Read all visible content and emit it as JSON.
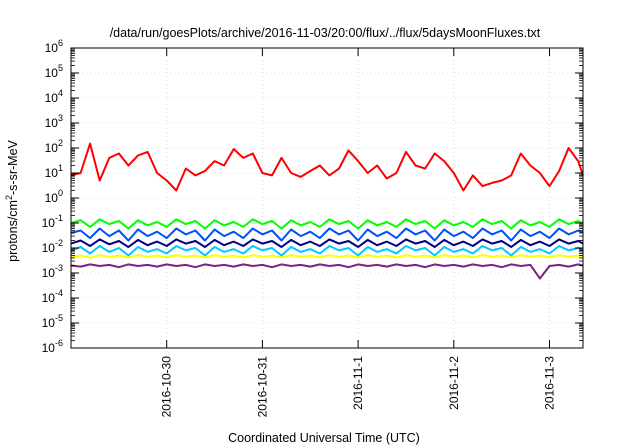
{
  "chart_data": {
    "type": "line",
    "title": "/data/run/goesPlots/archive/2016-11-03/20:00/flux/../flux/5daysMoonFluxes.txt",
    "xlabel": "Coordinated Universal Time (UTC)",
    "ylabel": {
      "base": "protons/cm",
      "sup": "2",
      "rest": "-s-sr-MeV"
    },
    "y_scale": "log",
    "ylim": [
      1e-06,
      1000000.0
    ],
    "xlim": [
      0,
      5.35
    ],
    "x_ticks": [
      {
        "x": 1,
        "label": "2016-10-30"
      },
      {
        "x": 2,
        "label": "2016-10-31"
      },
      {
        "x": 3,
        "label": "2016-11-1"
      },
      {
        "x": 4,
        "label": "2016-11-2"
      },
      {
        "x": 5,
        "label": "2016-11-3"
      }
    ],
    "y_ticks": [
      {
        "v": 1e-06,
        "base": "10",
        "exp": "-6"
      },
      {
        "v": 1e-05,
        "base": "10",
        "exp": "-5"
      },
      {
        "v": 0.0001,
        "base": "10",
        "exp": "-4"
      },
      {
        "v": 0.001,
        "base": "10",
        "exp": "-3"
      },
      {
        "v": 0.01,
        "base": "10",
        "exp": "-2"
      },
      {
        "v": 0.1,
        "base": "10",
        "exp": "-1"
      },
      {
        "v": 1,
        "base": "10",
        "exp": "0"
      },
      {
        "v": 10,
        "base": "10",
        "exp": "1"
      },
      {
        "v": 100,
        "base": "10",
        "exp": "2"
      },
      {
        "v": 1000,
        "base": "10",
        "exp": "3"
      },
      {
        "v": 10000,
        "base": "10",
        "exp": "4"
      },
      {
        "v": 100000,
        "base": "10",
        "exp": "5"
      },
      {
        "v": 1000000,
        "base": "10",
        "exp": "6"
      }
    ],
    "grid": true,
    "legend": "none",
    "series": [
      {
        "color": "#ff0000",
        "x": [
          0.0,
          0.1,
          0.2,
          0.3,
          0.4,
          0.5,
          0.6,
          0.7,
          0.8,
          0.9,
          1.0,
          1.1,
          1.2,
          1.3,
          1.4,
          1.5,
          1.6,
          1.7,
          1.8,
          1.9,
          2.0,
          2.1,
          2.2,
          2.3,
          2.4,
          2.5,
          2.6,
          2.7,
          2.8,
          2.9,
          3.0,
          3.1,
          3.2,
          3.3,
          3.4,
          3.5,
          3.6,
          3.7,
          3.8,
          3.9,
          4.0,
          4.1,
          4.2,
          4.3,
          4.4,
          4.5,
          4.6,
          4.7,
          4.8,
          4.9,
          5.0,
          5.1,
          5.2,
          5.3,
          5.35
        ],
        "y": [
          8,
          10,
          150,
          5,
          40,
          60,
          20,
          50,
          70,
          10,
          5,
          2,
          15,
          8,
          12,
          30,
          20,
          90,
          40,
          60,
          10,
          8,
          40,
          10,
          7,
          12,
          20,
          8,
          15,
          80,
          30,
          10,
          20,
          6,
          10,
          70,
          20,
          15,
          60,
          30,
          10,
          2,
          8,
          3,
          4,
          5,
          8,
          60,
          20,
          10,
          3,
          12,
          100,
          30,
          8
        ]
      },
      {
        "color": "#00ff00",
        "x": [
          0.0,
          0.1,
          0.2,
          0.3,
          0.4,
          0.5,
          0.6,
          0.7,
          0.8,
          0.9,
          1.0,
          1.1,
          1.2,
          1.3,
          1.4,
          1.5,
          1.6,
          1.7,
          1.8,
          1.9,
          2.0,
          2.1,
          2.2,
          2.3,
          2.4,
          2.5,
          2.6,
          2.7,
          2.8,
          2.9,
          3.0,
          3.1,
          3.2,
          3.3,
          3.4,
          3.5,
          3.6,
          3.7,
          3.8,
          3.9,
          4.0,
          4.1,
          4.2,
          4.3,
          4.4,
          4.5,
          4.6,
          4.7,
          4.8,
          4.9,
          5.0,
          5.1,
          5.2,
          5.3,
          5.35
        ],
        "y": [
          0.1,
          0.13,
          0.07,
          0.14,
          0.09,
          0.12,
          0.06,
          0.13,
          0.08,
          0.11,
          0.07,
          0.14,
          0.09,
          0.12,
          0.06,
          0.13,
          0.08,
          0.11,
          0.07,
          0.14,
          0.09,
          0.12,
          0.06,
          0.13,
          0.08,
          0.11,
          0.07,
          0.14,
          0.09,
          0.12,
          0.06,
          0.13,
          0.08,
          0.11,
          0.07,
          0.14,
          0.09,
          0.12,
          0.06,
          0.13,
          0.08,
          0.11,
          0.07,
          0.14,
          0.09,
          0.12,
          0.06,
          0.13,
          0.08,
          0.11,
          0.07,
          0.14,
          0.09,
          0.12,
          0.1
        ]
      },
      {
        "color": "#0050ff",
        "x": [
          0.0,
          0.1,
          0.2,
          0.3,
          0.4,
          0.5,
          0.6,
          0.7,
          0.8,
          0.9,
          1.0,
          1.1,
          1.2,
          1.3,
          1.4,
          1.5,
          1.6,
          1.7,
          1.8,
          1.9,
          2.0,
          2.1,
          2.2,
          2.3,
          2.4,
          2.5,
          2.6,
          2.7,
          2.8,
          2.9,
          3.0,
          3.1,
          3.2,
          3.3,
          3.4,
          3.5,
          3.6,
          3.7,
          3.8,
          3.9,
          4.0,
          4.1,
          4.2,
          4.3,
          4.4,
          4.5,
          4.6,
          4.7,
          4.8,
          4.9,
          5.0,
          5.1,
          5.2,
          5.3,
          5.35
        ],
        "y": [
          0.04,
          0.05,
          0.025,
          0.06,
          0.03,
          0.05,
          0.02,
          0.055,
          0.03,
          0.045,
          0.025,
          0.06,
          0.035,
          0.05,
          0.02,
          0.055,
          0.03,
          0.045,
          0.025,
          0.06,
          0.035,
          0.05,
          0.02,
          0.055,
          0.03,
          0.045,
          0.025,
          0.06,
          0.035,
          0.05,
          0.02,
          0.055,
          0.03,
          0.045,
          0.025,
          0.06,
          0.035,
          0.05,
          0.02,
          0.055,
          0.03,
          0.045,
          0.025,
          0.06,
          0.035,
          0.05,
          0.02,
          0.055,
          0.03,
          0.045,
          0.025,
          0.06,
          0.035,
          0.05,
          0.04
        ]
      },
      {
        "color": "#00c8ff",
        "x": [
          0.0,
          0.1,
          0.2,
          0.3,
          0.4,
          0.5,
          0.6,
          0.7,
          0.8,
          0.9,
          1.0,
          1.1,
          1.2,
          1.3,
          1.4,
          1.5,
          1.6,
          1.7,
          1.8,
          1.9,
          2.0,
          2.1,
          2.2,
          2.3,
          2.4,
          2.5,
          2.6,
          2.7,
          2.8,
          2.9,
          3.0,
          3.1,
          3.2,
          3.3,
          3.4,
          3.5,
          3.6,
          3.7,
          3.8,
          3.9,
          4.0,
          4.1,
          4.2,
          4.3,
          4.4,
          4.5,
          4.6,
          4.7,
          4.8,
          4.9,
          5.0,
          5.1,
          5.2,
          5.3,
          5.35
        ],
        "y": [
          0.008,
          0.011,
          0.006,
          0.012,
          0.007,
          0.01,
          0.005,
          0.011,
          0.007,
          0.009,
          0.006,
          0.012,
          0.008,
          0.01,
          0.005,
          0.011,
          0.007,
          0.009,
          0.006,
          0.012,
          0.008,
          0.01,
          0.005,
          0.011,
          0.007,
          0.009,
          0.006,
          0.012,
          0.008,
          0.01,
          0.005,
          0.011,
          0.007,
          0.009,
          0.006,
          0.012,
          0.008,
          0.01,
          0.005,
          0.011,
          0.007,
          0.009,
          0.006,
          0.012,
          0.008,
          0.01,
          0.005,
          0.011,
          0.007,
          0.009,
          0.006,
          0.012,
          0.008,
          0.01,
          0.008
        ]
      },
      {
        "color": "#000080",
        "x": [
          0.0,
          0.1,
          0.2,
          0.3,
          0.4,
          0.5,
          0.6,
          0.7,
          0.8,
          0.9,
          1.0,
          1.1,
          1.2,
          1.3,
          1.4,
          1.5,
          1.6,
          1.7,
          1.8,
          1.9,
          2.0,
          2.1,
          2.2,
          2.3,
          2.4,
          2.5,
          2.6,
          2.7,
          2.8,
          2.9,
          3.0,
          3.1,
          3.2,
          3.3,
          3.4,
          3.5,
          3.6,
          3.7,
          3.8,
          3.9,
          4.0,
          4.1,
          4.2,
          4.3,
          4.4,
          4.5,
          4.6,
          4.7,
          4.8,
          4.9,
          5.0,
          5.1,
          5.2,
          5.3,
          5.35
        ],
        "y": [
          0.015,
          0.02,
          0.012,
          0.022,
          0.014,
          0.019,
          0.011,
          0.021,
          0.013,
          0.018,
          0.012,
          0.022,
          0.015,
          0.019,
          0.011,
          0.021,
          0.013,
          0.018,
          0.012,
          0.022,
          0.015,
          0.019,
          0.011,
          0.021,
          0.013,
          0.018,
          0.012,
          0.022,
          0.015,
          0.019,
          0.011,
          0.021,
          0.013,
          0.018,
          0.012,
          0.022,
          0.015,
          0.019,
          0.011,
          0.021,
          0.013,
          0.018,
          0.012,
          0.022,
          0.015,
          0.019,
          0.011,
          0.021,
          0.013,
          0.018,
          0.012,
          0.022,
          0.015,
          0.019,
          0.015
        ]
      },
      {
        "color": "#ffff00",
        "x": [
          0.0,
          0.1,
          0.2,
          0.3,
          0.4,
          0.5,
          0.6,
          0.7,
          0.8,
          0.9,
          1.0,
          1.1,
          1.2,
          1.3,
          1.4,
          1.5,
          1.6,
          1.7,
          1.8,
          1.9,
          2.0,
          2.1,
          2.2,
          2.3,
          2.4,
          2.5,
          2.6,
          2.7,
          2.8,
          2.9,
          3.0,
          3.1,
          3.2,
          3.3,
          3.4,
          3.5,
          3.6,
          3.7,
          3.8,
          3.9,
          4.0,
          4.1,
          4.2,
          4.3,
          4.4,
          4.5,
          4.6,
          4.7,
          4.8,
          4.9,
          5.0,
          5.1,
          5.2,
          5.3,
          5.35
        ],
        "y": [
          0.0045,
          0.005,
          0.004,
          0.0052,
          0.0045,
          0.005,
          0.0042,
          0.0052,
          0.0045,
          0.005,
          0.0042,
          0.0052,
          0.0045,
          0.005,
          0.0042,
          0.0052,
          0.0045,
          0.005,
          0.0042,
          0.0052,
          0.0045,
          0.005,
          0.0042,
          0.0052,
          0.0045,
          0.005,
          0.0042,
          0.0052,
          0.0045,
          0.005,
          0.0042,
          0.0052,
          0.0045,
          0.005,
          0.0042,
          0.0052,
          0.0045,
          0.005,
          0.0042,
          0.0052,
          0.0045,
          0.005,
          0.0042,
          0.0052,
          0.0045,
          0.005,
          0.0042,
          0.0052,
          0.0045,
          0.005,
          0.0042,
          0.0052,
          0.0045,
          0.005,
          0.0045
        ]
      },
      {
        "color": "#802080",
        "x": [
          0.0,
          0.1,
          0.2,
          0.3,
          0.4,
          0.5,
          0.6,
          0.7,
          0.8,
          0.9,
          1.0,
          1.1,
          1.2,
          1.3,
          1.4,
          1.5,
          1.6,
          1.7,
          1.8,
          1.9,
          2.0,
          2.1,
          2.2,
          2.3,
          2.4,
          2.5,
          2.6,
          2.7,
          2.8,
          2.9,
          3.0,
          3.1,
          3.2,
          3.3,
          3.4,
          3.5,
          3.6,
          3.7,
          3.8,
          3.9,
          4.0,
          4.1,
          4.2,
          4.3,
          4.4,
          4.5,
          4.6,
          4.7,
          4.8,
          4.9,
          5.0,
          5.1,
          5.2,
          5.3,
          5.35
        ],
        "y": [
          0.002,
          0.0018,
          0.0022,
          0.0019,
          0.0021,
          0.0017,
          0.0022,
          0.0019,
          0.0021,
          0.0018,
          0.0022,
          0.0019,
          0.0021,
          0.0017,
          0.0022,
          0.0019,
          0.0021,
          0.0018,
          0.0022,
          0.0019,
          0.0021,
          0.0017,
          0.0022,
          0.0019,
          0.0021,
          0.0018,
          0.0022,
          0.0019,
          0.0021,
          0.0017,
          0.0022,
          0.0019,
          0.0021,
          0.0018,
          0.0022,
          0.0019,
          0.0021,
          0.0017,
          0.0022,
          0.0019,
          0.0021,
          0.0018,
          0.0022,
          0.0019,
          0.0021,
          0.0017,
          0.0022,
          0.0019,
          0.0021,
          0.0006,
          0.0019,
          0.0021,
          0.0018,
          0.0022,
          0.002
        ]
      }
    ]
  }
}
